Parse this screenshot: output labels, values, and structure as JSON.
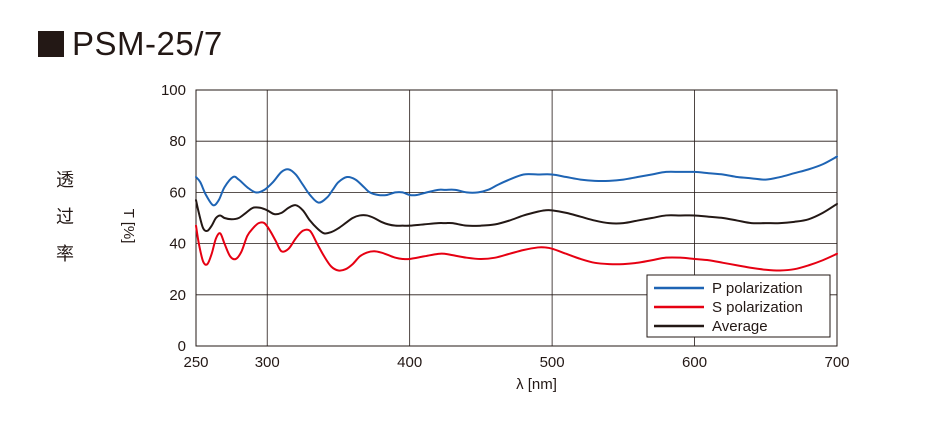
{
  "title": "PSM-25/7",
  "side_label": [
    "透",
    "过",
    "率"
  ],
  "chart_data": {
    "type": "line",
    "xlabel": "λ [nm]",
    "ylabel": "T [%]",
    "xlim": [
      250,
      700
    ],
    "ylim": [
      0,
      100
    ],
    "xticks": [
      250,
      300,
      400,
      500,
      600,
      700
    ],
    "xgrid": [
      300,
      400,
      500,
      600
    ],
    "yticks": [
      0,
      20,
      40,
      60,
      80,
      100
    ],
    "grid": true,
    "legend_position": "bottom-right",
    "series": [
      {
        "name": "P polarization",
        "color": "#1e64b4",
        "x": [
          250,
          253,
          257,
          262,
          266,
          270,
          276,
          280,
          286,
          292,
          298,
          304,
          310,
          315,
          320,
          325,
          330,
          336,
          342,
          346,
          350,
          356,
          362,
          368,
          372,
          378,
          384,
          390,
          395,
          400,
          405,
          412,
          420,
          425,
          432,
          440,
          448,
          455,
          462,
          470,
          480,
          490,
          500,
          510,
          520,
          530,
          540,
          550,
          560,
          570,
          580,
          590,
          600,
          610,
          620,
          630,
          640,
          650,
          660,
          670,
          680,
          690,
          700
        ],
        "y": [
          66,
          64,
          59,
          55,
          57,
          62,
          66,
          65,
          62,
          60,
          61,
          64,
          68,
          69,
          67,
          63,
          59,
          56,
          58,
          61,
          64,
          66,
          65,
          62,
          60,
          59,
          59,
          60,
          60,
          59,
          59,
          60,
          61,
          61,
          61,
          60,
          60,
          61,
          63,
          65,
          67,
          67,
          67,
          66,
          65,
          64.5,
          64.5,
          65,
          66,
          67,
          68,
          68,
          68,
          67.5,
          67,
          66,
          65.5,
          65,
          66,
          67.5,
          69,
          71,
          74
        ]
      },
      {
        "name": "S polarization",
        "color": "#e60012",
        "x": [
          250,
          252,
          255,
          258,
          261,
          264,
          267,
          270,
          274,
          278,
          282,
          286,
          290,
          294,
          298,
          302,
          306,
          310,
          315,
          320,
          325,
          330,
          335,
          340,
          345,
          350,
          355,
          360,
          365,
          370,
          375,
          380,
          385,
          390,
          395,
          400,
          410,
          420,
          425,
          430,
          440,
          450,
          460,
          470,
          480,
          490,
          495,
          500,
          510,
          520,
          530,
          540,
          550,
          560,
          570,
          580,
          590,
          600,
          610,
          620,
          630,
          640,
          650,
          660,
          670,
          680,
          690,
          700
        ],
        "y": [
          47,
          40,
          33,
          32,
          36,
          42,
          44,
          40,
          35,
          34,
          37,
          43,
          46,
          48,
          48,
          45,
          41,
          37,
          38,
          42,
          45,
          45,
          40,
          35,
          31,
          29.5,
          30,
          32,
          35,
          36.5,
          37,
          36.5,
          35.5,
          34.5,
          34,
          34,
          35,
          36,
          36,
          35.5,
          34.5,
          34,
          34.5,
          36,
          37.5,
          38.5,
          38.5,
          38,
          36,
          34,
          32.5,
          32,
          32,
          32.5,
          33.5,
          34.5,
          34.5,
          34,
          33.5,
          32.5,
          31.5,
          30.5,
          29.8,
          29.5,
          30,
          31.5,
          33.5,
          36
        ]
      },
      {
        "name": "Average",
        "color": "#231815",
        "x": [
          250,
          252,
          255,
          258,
          261,
          264,
          267,
          270,
          275,
          280,
          285,
          290,
          295,
          300,
          305,
          310,
          315,
          320,
          325,
          330,
          335,
          340,
          345,
          350,
          355,
          360,
          365,
          370,
          375,
          380,
          385,
          390,
          395,
          400,
          410,
          420,
          425,
          430,
          440,
          450,
          460,
          470,
          480,
          490,
          495,
          500,
          510,
          520,
          530,
          540,
          550,
          560,
          570,
          580,
          590,
          600,
          610,
          620,
          630,
          640,
          650,
          660,
          670,
          680,
          690,
          700
        ],
        "y": [
          57,
          52,
          46,
          45,
          47,
          50,
          51,
          50,
          49.5,
          50,
          52,
          54,
          54,
          53,
          51.5,
          52,
          54,
          55,
          53,
          49,
          46,
          44,
          44.5,
          46,
          48,
          50,
          51,
          51,
          50,
          48.5,
          47.5,
          47,
          47,
          47,
          47.5,
          48,
          48,
          48,
          47,
          47,
          47.5,
          49,
          51,
          52.5,
          53,
          53,
          52,
          50.5,
          49,
          48,
          48,
          49,
          50,
          51,
          51,
          51,
          50.5,
          50,
          49,
          48,
          48,
          48,
          48.5,
          49.5,
          52,
          55.5
        ]
      }
    ]
  }
}
